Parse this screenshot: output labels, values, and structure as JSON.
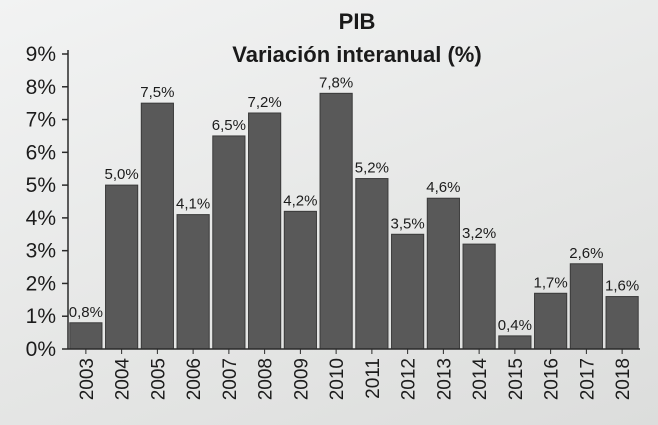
{
  "chart_data": {
    "type": "bar",
    "title": "PIB",
    "subtitle": "Variación interanual (%)",
    "categories": [
      "2003",
      "2004",
      "2005",
      "2006",
      "2007",
      "2008",
      "2009",
      "2010",
      "2011",
      "2012",
      "2013",
      "2014",
      "2015",
      "2016",
      "2017",
      "2018"
    ],
    "values": [
      0.8,
      5.0,
      7.5,
      4.1,
      6.5,
      7.2,
      4.2,
      7.8,
      5.2,
      3.5,
      4.6,
      3.2,
      0.4,
      1.7,
      2.6,
      1.6
    ],
    "data_labels": [
      "0,8%",
      "5,0%",
      "7,5%",
      "4,1%",
      "6,5%",
      "7,2%",
      "4,2%",
      "7,8%",
      "5,2%",
      "3,5%",
      "4,6%",
      "3,2%",
      "0,4%",
      "1,7%",
      "2,6%",
      "1,6%"
    ],
    "y_ticks": [
      "0%",
      "1%",
      "2%",
      "3%",
      "4%",
      "5%",
      "6%",
      "7%",
      "8%",
      "9%"
    ],
    "ylim": [
      0,
      9
    ],
    "grid": false,
    "legend": "none",
    "colors": {
      "bar": "#595959",
      "bar_edge": "#3a3a3a",
      "axis": "#2a2a2a",
      "text": "#1c1c1c"
    }
  }
}
